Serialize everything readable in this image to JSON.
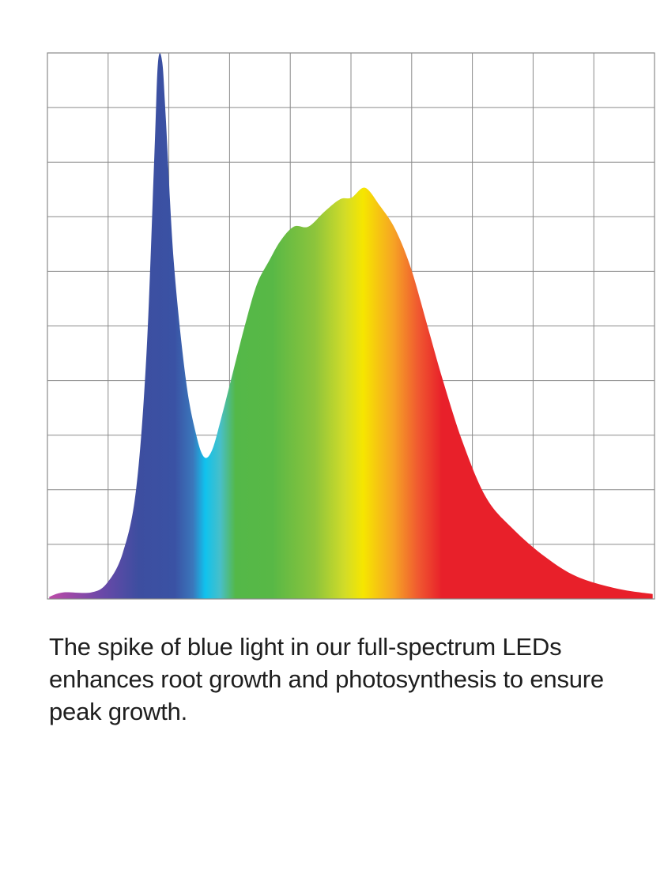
{
  "chart_data": {
    "type": "area",
    "title": "",
    "xlabel": "",
    "ylabel": "",
    "xlim": [
      0,
      10
    ],
    "ylim": [
      0,
      10
    ],
    "grid": true,
    "grid_divisions": {
      "x": 10,
      "y": 10
    },
    "tick_labels": "none",
    "series": [
      {
        "x": [
          0.03,
          0.26,
          0.72,
          0.98,
          1.24,
          1.46,
          1.63,
          1.76,
          1.82,
          1.89,
          1.95,
          2.08,
          2.28,
          2.45,
          2.58,
          2.71,
          2.86,
          3.06,
          3.26,
          3.45,
          3.65,
          3.84,
          4.06,
          4.3,
          4.56,
          4.82,
          5.01,
          5.23,
          5.47,
          5.73,
          5.99,
          6.25,
          6.51,
          6.84,
          7.23,
          7.68,
          8.2,
          8.72,
          9.38,
          9.97
        ],
        "y": [
          0.04,
          0.12,
          0.12,
          0.29,
          0.84,
          2.0,
          4.46,
          8.08,
          9.81,
          9.84,
          8.8,
          6.19,
          4.02,
          3.01,
          2.6,
          2.72,
          3.3,
          4.17,
          5.04,
          5.76,
          6.19,
          6.56,
          6.82,
          6.82,
          7.09,
          7.32,
          7.35,
          7.53,
          7.21,
          6.77,
          6.05,
          5.04,
          4.02,
          2.87,
          1.85,
          1.27,
          0.77,
          0.41,
          0.19,
          0.09
        ]
      }
    ],
    "fill_gradient": [
      {
        "x": 0.0,
        "color": "#c04aa8"
      },
      {
        "x": 0.9,
        "color": "#6a48a8"
      },
      {
        "x": 1.5,
        "color": "#3d4ea0"
      },
      {
        "x": 2.1,
        "color": "#3a52a4"
      },
      {
        "x": 2.4,
        "color": "#3a78bc"
      },
      {
        "x": 2.6,
        "color": "#10c2ee"
      },
      {
        "x": 2.85,
        "color": "#48bfc8"
      },
      {
        "x": 3.1,
        "color": "#54b848"
      },
      {
        "x": 3.7,
        "color": "#58b846"
      },
      {
        "x": 4.4,
        "color": "#8cc43c"
      },
      {
        "x": 4.9,
        "color": "#d2dc28"
      },
      {
        "x": 5.2,
        "color": "#f6e600"
      },
      {
        "x": 5.7,
        "color": "#f6a424"
      },
      {
        "x": 6.1,
        "color": "#f05a30"
      },
      {
        "x": 6.5,
        "color": "#e8202a"
      },
      {
        "x": 10.0,
        "color": "#e8202a"
      }
    ],
    "grid_color": "#8a8a8a"
  },
  "caption": "The spike of blue light in our full-spectrum LEDs enhances root growth and photosynthesis to ensure peak growth."
}
